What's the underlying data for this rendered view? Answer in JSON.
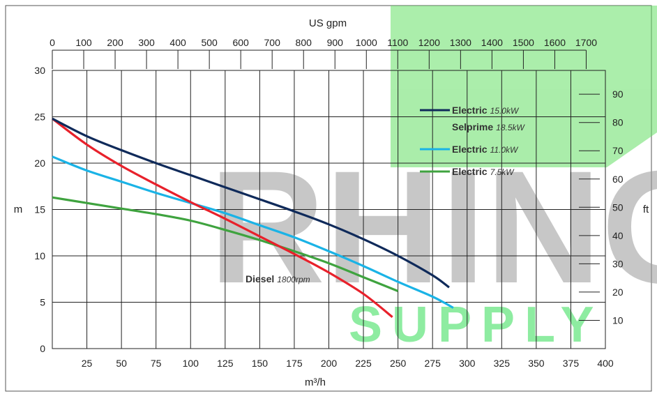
{
  "chart_data": {
    "type": "line",
    "title": "",
    "xlabel": "m³/h",
    "ylabel": "m",
    "x_top_label": "US gpm",
    "y_right_label": "ft",
    "xlim": [
      0,
      400
    ],
    "ylim": [
      0,
      30
    ],
    "x_ticks": [
      25,
      50,
      75,
      100,
      125,
      150,
      175,
      200,
      225,
      250,
      275,
      300,
      325,
      350,
      375,
      400
    ],
    "y_ticks": [
      0,
      5,
      10,
      15,
      20,
      25,
      30
    ],
    "x_top_ticks": [
      0,
      100,
      200,
      300,
      400,
      500,
      600,
      700,
      800,
      900,
      1000,
      1100,
      1200,
      1300,
      1400,
      1500,
      1600,
      1700
    ],
    "y_right_ticks": [
      10,
      20,
      30,
      40,
      50,
      60,
      70,
      80,
      90
    ],
    "grid": true,
    "legend_position": "top-right",
    "series": [
      {
        "name": "Electric 15.0kW / Selprime 18.5kW",
        "color": "#0f2a5a",
        "x": [
          0,
          25,
          50,
          75,
          100,
          125,
          150,
          175,
          200,
          225,
          250,
          275,
          287
        ],
        "y": [
          24.8,
          22.9,
          21.4,
          20.0,
          18.7,
          17.4,
          16.1,
          14.8,
          13.4,
          11.8,
          10.0,
          7.9,
          6.6
        ]
      },
      {
        "name": "Electric 11.0kW",
        "color": "#1ab3e6",
        "x": [
          0,
          25,
          50,
          75,
          100,
          125,
          150,
          175,
          200,
          225,
          250,
          275,
          290
        ],
        "y": [
          20.7,
          19.2,
          18.0,
          16.8,
          15.7,
          14.6,
          13.3,
          12.0,
          10.5,
          8.9,
          7.2,
          5.6,
          4.4
        ]
      },
      {
        "name": "Electric 7.5kW",
        "color": "#3fa33f",
        "x": [
          0,
          25,
          50,
          75,
          100,
          125,
          150,
          175,
          200,
          225,
          250
        ],
        "y": [
          16.3,
          15.7,
          15.1,
          14.5,
          13.8,
          12.8,
          11.7,
          10.5,
          9.2,
          7.7,
          6.2
        ]
      },
      {
        "name": "Diesel 1800rpm",
        "color": "#e8212b",
        "x": [
          0,
          25,
          50,
          75,
          100,
          125,
          150,
          175,
          200,
          225,
          246
        ],
        "y": [
          24.8,
          22.0,
          19.7,
          17.7,
          15.8,
          14.0,
          12.1,
          10.2,
          8.2,
          5.9,
          3.4
        ]
      }
    ]
  },
  "legend": [
    {
      "main": "Electric",
      "sub": "15.0kW",
      "color": "#0f2a5a"
    },
    {
      "main": "Selprime",
      "sub": "18.5kW",
      "color": ""
    },
    {
      "main": "Electric",
      "sub": "11.0kW",
      "color": "#1ab3e6"
    },
    {
      "main": "Electric",
      "sub": "7.5kW",
      "color": "#3fa33f"
    }
  ],
  "annotation": {
    "main": "Diesel",
    "sub": "1800rpm"
  },
  "watermark": {
    "line1": "RHINO",
    "line2": "SUPPLY",
    "green": "#66e066",
    "grey": "#9a9a9a"
  }
}
